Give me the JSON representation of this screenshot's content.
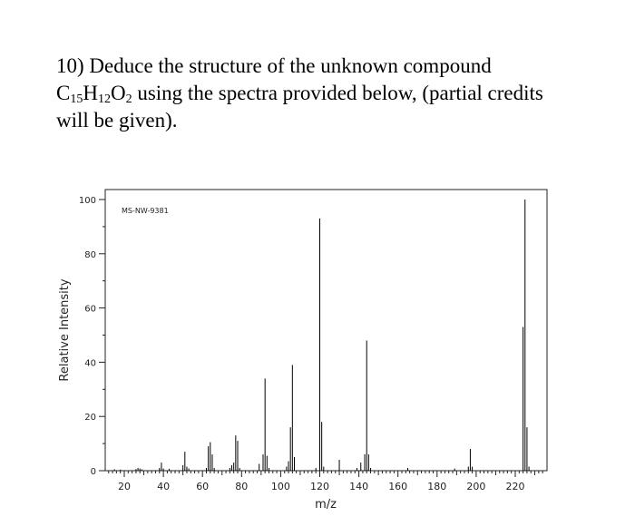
{
  "question": {
    "number": "10)",
    "line1": "Deduce the structure of the unknown compound",
    "formula": {
      "c": "C",
      "c_sub": "15",
      "h": "H",
      "h_sub": "12",
      "o": "O",
      "o_sub": "2"
    },
    "line2_rest": " using the spectra provided below, (partial credits",
    "line3": "will be given)."
  },
  "chart_data": {
    "type": "bar",
    "title": "",
    "annotation": "MS-NW-9381",
    "xlabel": "m/z",
    "ylabel": "Relative Intensity",
    "xlim": [
      10,
      234
    ],
    "ylim": [
      0,
      100
    ],
    "xticks": [
      20,
      40,
      60,
      80,
      100,
      120,
      140,
      160,
      180,
      200,
      220
    ],
    "yticks": [
      0,
      20,
      40,
      60,
      80,
      100
    ],
    "grid": false,
    "peaks": [
      {
        "x": 15,
        "y": 0.5
      },
      {
        "x": 18,
        "y": 0.4
      },
      {
        "x": 26,
        "y": 0.6
      },
      {
        "x": 27,
        "y": 1.0
      },
      {
        "x": 28,
        "y": 0.8
      },
      {
        "x": 29,
        "y": 0.5
      },
      {
        "x": 38,
        "y": 1.0
      },
      {
        "x": 39,
        "y": 3.0
      },
      {
        "x": 40,
        "y": 0.8
      },
      {
        "x": 43,
        "y": 0.7
      },
      {
        "x": 50,
        "y": 2.0
      },
      {
        "x": 51,
        "y": 7.0
      },
      {
        "x": 52,
        "y": 1.5
      },
      {
        "x": 53,
        "y": 0.8
      },
      {
        "x": 62,
        "y": 1.0
      },
      {
        "x": 63,
        "y": 9.0
      },
      {
        "x": 64,
        "y": 10.5
      },
      {
        "x": 65,
        "y": 6.0
      },
      {
        "x": 66,
        "y": 1.0
      },
      {
        "x": 74,
        "y": 1.0
      },
      {
        "x": 75,
        "y": 2.0
      },
      {
        "x": 76,
        "y": 3.0
      },
      {
        "x": 77,
        "y": 13.0
      },
      {
        "x": 78,
        "y": 11.0
      },
      {
        "x": 79,
        "y": 1.0
      },
      {
        "x": 89,
        "y": 2.5
      },
      {
        "x": 91,
        "y": 6.0
      },
      {
        "x": 92,
        "y": 34.0
      },
      {
        "x": 93,
        "y": 5.5
      },
      {
        "x": 94,
        "y": 1.0
      },
      {
        "x": 103,
        "y": 1.5
      },
      {
        "x": 104,
        "y": 3.5
      },
      {
        "x": 105,
        "y": 16.0
      },
      {
        "x": 106,
        "y": 39.0
      },
      {
        "x": 107,
        "y": 5.0
      },
      {
        "x": 118,
        "y": 1.0
      },
      {
        "x": 120,
        "y": 93.0
      },
      {
        "x": 121,
        "y": 18.0
      },
      {
        "x": 122,
        "y": 1.5
      },
      {
        "x": 130,
        "y": 4.0
      },
      {
        "x": 139,
        "y": 1.0
      },
      {
        "x": 141,
        "y": 3.0
      },
      {
        "x": 143,
        "y": 6.0
      },
      {
        "x": 144,
        "y": 48.0
      },
      {
        "x": 145,
        "y": 6.0
      },
      {
        "x": 146,
        "y": 1.0
      },
      {
        "x": 165,
        "y": 1.0
      },
      {
        "x": 189,
        "y": 0.8
      },
      {
        "x": 196,
        "y": 1.5
      },
      {
        "x": 197,
        "y": 8.0
      },
      {
        "x": 198,
        "y": 1.5
      },
      {
        "x": 224,
        "y": 53.0
      },
      {
        "x": 225,
        "y": 100.0
      },
      {
        "x": 226,
        "y": 16.0
      },
      {
        "x": 227,
        "y": 1.5
      }
    ]
  }
}
